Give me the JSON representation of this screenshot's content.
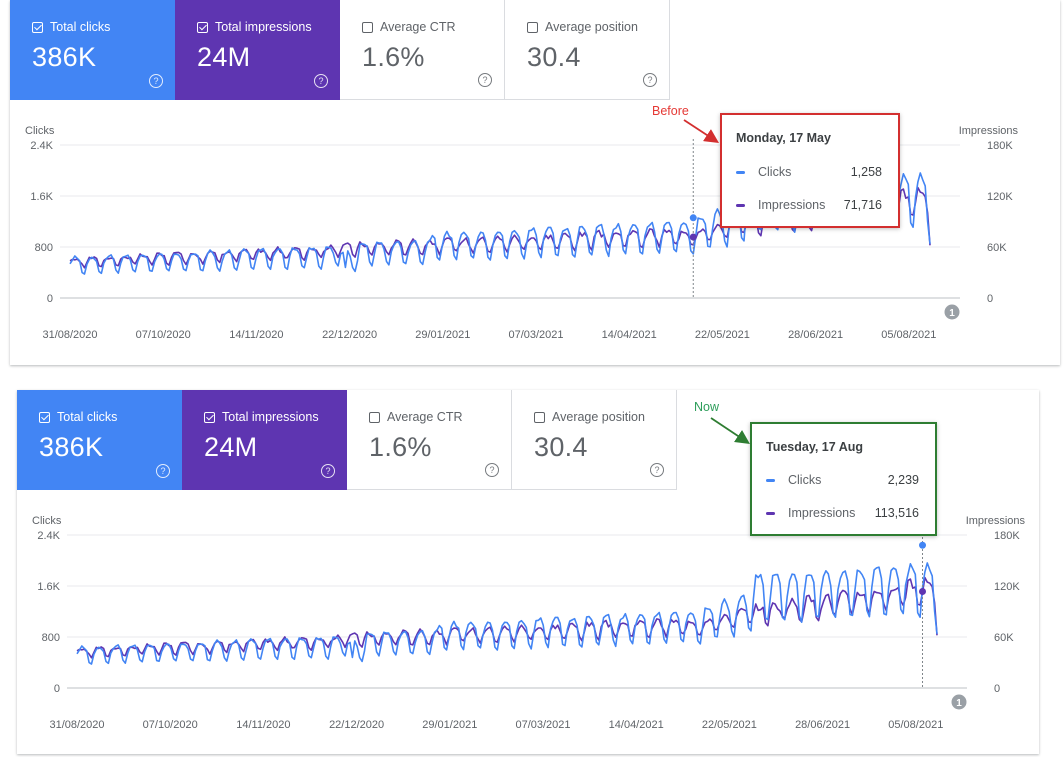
{
  "panels": [
    {
      "metrics": [
        {
          "label": "Total clicks",
          "value": "386K",
          "checked": true
        },
        {
          "label": "Total impressions",
          "value": "24M",
          "checked": true
        },
        {
          "label": "Average CTR",
          "value": "1.6%",
          "checked": false
        },
        {
          "label": "Average position",
          "value": "30.4",
          "checked": false
        }
      ],
      "tooltip": {
        "date": "Monday, 17 May",
        "clicks_label": "Clicks",
        "clicks_value": "1,258",
        "impr_label": "Impressions",
        "impr_value": "71,716"
      },
      "annotation": {
        "text": "Before",
        "color": "#e53935"
      }
    },
    {
      "metrics": [
        {
          "label": "Total clicks",
          "value": "386K",
          "checked": true
        },
        {
          "label": "Total impressions",
          "value": "24M",
          "checked": true
        },
        {
          "label": "Average CTR",
          "value": "1.6%",
          "checked": false
        },
        {
          "label": "Average position",
          "value": "30.4",
          "checked": false
        }
      ],
      "tooltip": {
        "date": "Tuesday, 17 Aug",
        "clicks_label": "Clicks",
        "clicks_value": "2,239",
        "impr_label": "Impressions",
        "impr_value": "113,516"
      },
      "annotation": {
        "text": "Now",
        "color": "#2e9e5b"
      }
    }
  ],
  "colors": {
    "clicks": "#4285f4",
    "impressions": "#5e35b1",
    "grid": "#e8eaed",
    "before_box": "#d32f2f",
    "now_box": "#2e7d32",
    "annotation_marker": "#9aa0a6"
  },
  "chart_data": [
    {
      "type": "line",
      "ylabel_left": "Clicks",
      "ylabel_right": "Impressions",
      "left_ticks": [
        "2.4K",
        "1.6K",
        "800",
        "0"
      ],
      "right_ticks": [
        "180K",
        "120K",
        "60K",
        "0"
      ],
      "x_ticks": [
        "31/08/2020",
        "07/10/2020",
        "14/11/2020",
        "22/12/2020",
        "29/01/2021",
        "07/03/2021",
        "14/04/2021",
        "22/05/2021",
        "28/06/2021",
        "05/08/2021"
      ],
      "ylim_left": [
        0,
        2400
      ],
      "ylim_right": [
        0,
        180000
      ],
      "x_range": [
        "2020-08-31",
        "2021-08-23"
      ],
      "annotation_marker": "1",
      "hover_date": "2021-05-17",
      "hover_clicks": 1258,
      "hover_impressions": 71716,
      "series": [
        {
          "name": "Clicks",
          "approx_weekly_peaks": [
            700,
            720,
            780,
            900,
            950,
            1000,
            1050,
            1200,
            1280,
            1300,
            1350,
            1450,
            1550,
            2100,
            2200
          ]
        },
        {
          "name": "Impressions",
          "approx_weekly_values": [
            40000,
            42000,
            45000,
            52000,
            55000,
            58000,
            60000,
            68000,
            70000,
            72000,
            75000,
            80000,
            88000,
            110000,
            120000
          ]
        }
      ]
    },
    {
      "type": "line",
      "ylabel_left": "Clicks",
      "ylabel_right": "Impressions",
      "left_ticks": [
        "2.4K",
        "1.6K",
        "800",
        "0"
      ],
      "right_ticks": [
        "180K",
        "120K",
        "60K",
        "0"
      ],
      "x_ticks": [
        "31/08/2020",
        "07/10/2020",
        "14/11/2020",
        "22/12/2020",
        "29/01/2021",
        "07/03/2021",
        "14/04/2021",
        "22/05/2021",
        "28/06/2021",
        "05/08/2021"
      ],
      "ylim_left": [
        0,
        2400
      ],
      "ylim_right": [
        0,
        180000
      ],
      "x_range": [
        "2020-08-31",
        "2021-08-23"
      ],
      "annotation_marker": "1",
      "hover_date": "2021-08-17",
      "hover_clicks": 2239,
      "hover_impressions": 113516,
      "series": [
        {
          "name": "Clicks",
          "approx_weekly_peaks": [
            700,
            720,
            780,
            900,
            950,
            1000,
            1050,
            1200,
            1280,
            1300,
            1350,
            1450,
            1550,
            2100,
            2200
          ]
        },
        {
          "name": "Impressions",
          "approx_weekly_values": [
            40000,
            42000,
            45000,
            52000,
            55000,
            58000,
            60000,
            68000,
            70000,
            72000,
            75000,
            80000,
            88000,
            110000,
            120000
          ]
        }
      ]
    }
  ]
}
